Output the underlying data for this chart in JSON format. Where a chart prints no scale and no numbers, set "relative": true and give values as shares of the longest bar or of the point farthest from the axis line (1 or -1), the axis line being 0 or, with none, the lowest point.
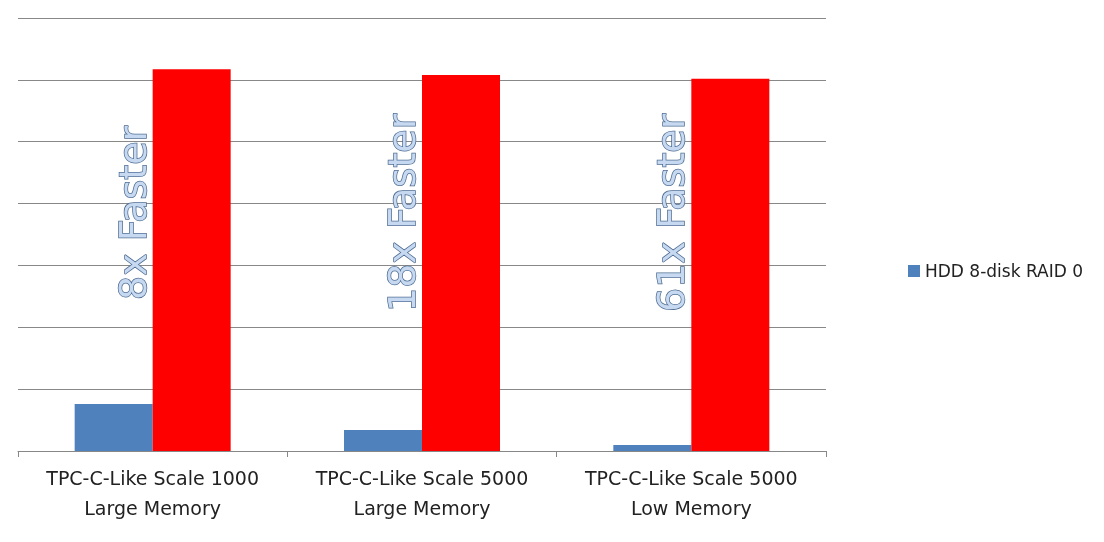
{
  "chart_data": {
    "type": "bar",
    "relative": true,
    "categories": [
      "TPC-C-Like Scale 1000\nLarge Memory",
      "TPC-C-Like Scale 5000\nLarge Memory",
      "TPC-C-Like Scale 5000\nLow Memory"
    ],
    "series": [
      {
        "name": "HDD 8-disk RAID 0",
        "color": "#4f81bd",
        "values": [
          0.123,
          0.055,
          0.016
        ]
      },
      {
        "color": "#ff0000",
        "values": [
          1,
          0.985,
          0.975
        ]
      }
    ],
    "annotations": [
      "8x Faster",
      "18x Faster",
      "61x Faster"
    ],
    "grid": "y",
    "legend": "right"
  }
}
